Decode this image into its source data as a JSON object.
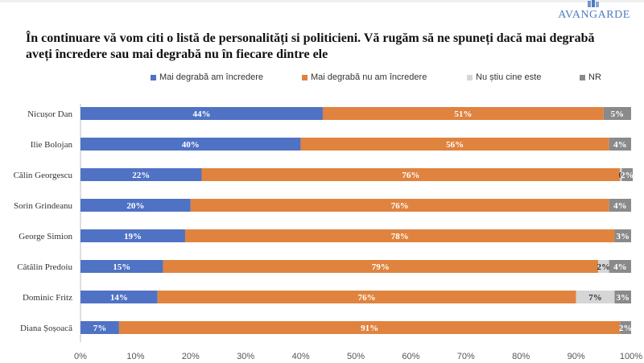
{
  "brand": {
    "logo_text": "AVANGARDE"
  },
  "title": "În continuare vă vom citi o listă de personalități si politicieni. Vă rugăm să ne spuneți dacă mai degrabă aveți încredere sau mai degrabă nu în fiecare dintre ele",
  "chart_data": {
    "type": "bar",
    "orientation": "horizontal",
    "stacked": "100%",
    "categories": [
      "Nicușor Dan",
      "Ilie Bolojan",
      "Călin Georgescu",
      "Sorin Grindeanu",
      "George Simion",
      "Cătălin Predoiu",
      "Dominic Fritz",
      "Diana Șoșoacă"
    ],
    "series": [
      {
        "name": "Mai degrabă am încredere",
        "color": "#4f72c4",
        "values": [
          44,
          40,
          22,
          20,
          19,
          15,
          14,
          7
        ],
        "labels": [
          "44%",
          "40%",
          "22%",
          "20%",
          "19%",
          "15%",
          "14%",
          "7%"
        ]
      },
      {
        "name": "Mai degrabă nu am încredere",
        "color": "#e0833f",
        "values": [
          51,
          56,
          76,
          76,
          78,
          79,
          76,
          91
        ],
        "labels": [
          "51%",
          "56%",
          "76%",
          "76%",
          "78%",
          "79%",
          "76%",
          "91%"
        ]
      },
      {
        "name": "Nu știu cine este",
        "color": "#d6d6d6",
        "values": [
          0,
          0,
          0.3,
          0,
          0,
          2,
          7,
          0
        ],
        "labels": [
          "",
          "",
          "0",
          "",
          "",
          "2%",
          "7%",
          ""
        ]
      },
      {
        "name": "NR",
        "color": "#8a8a8a",
        "values": [
          5,
          4,
          2,
          4,
          3,
          4,
          3,
          2
        ],
        "labels": [
          "5%",
          "4%",
          "2%",
          "4%",
          "3%",
          "4%",
          "3%",
          "2%"
        ]
      }
    ],
    "xlim": [
      0,
      100
    ],
    "x_ticks": [
      "0%",
      "10%",
      "20%",
      "30%",
      "40%",
      "50%",
      "60%",
      "70%",
      "80%",
      "90%",
      "100%"
    ],
    "legend_position": "top",
    "grid": false
  }
}
